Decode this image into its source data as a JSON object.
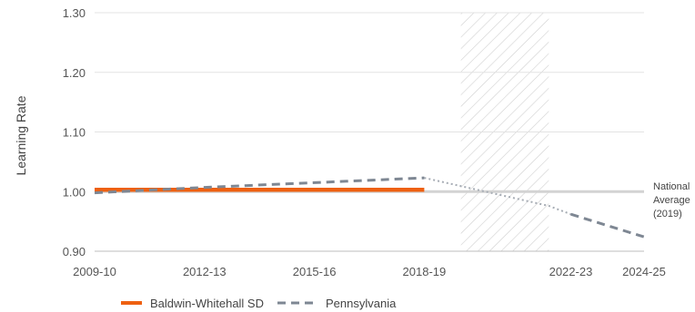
{
  "chart_data": {
    "type": "line",
    "title": "",
    "xlabel": "",
    "ylabel": "Learning Rate",
    "x_ticks": [
      "2009-10",
      "2012-13",
      "2015-16",
      "2018-19",
      "2022-23",
      "2024-25"
    ],
    "x_tick_years": [
      2009,
      2012,
      2015,
      2018,
      2022,
      2024
    ],
    "x_range": [
      2009,
      2024
    ],
    "y_ticks": [
      "0.90",
      "1.00",
      "1.10",
      "1.20",
      "1.30"
    ],
    "y_tick_values": [
      0.9,
      1.0,
      1.1,
      1.2,
      1.3
    ],
    "ylim": [
      0.9,
      1.3
    ],
    "grid": "horizontal",
    "hatched_period": [
      2019,
      2021.4
    ],
    "reference_line": {
      "value": 1.0,
      "label_lines": [
        "National",
        "Average",
        "(2019)"
      ]
    },
    "series": [
      {
        "name": "Baldwin-Whitehall SD",
        "style": "solid",
        "color": "#ee6011",
        "x": [
          2009,
          2018
        ],
        "values": [
          1.003,
          1.003
        ]
      },
      {
        "name": "Pennsylvania",
        "style": "dashed",
        "color": "#7e8793",
        "x": [
          2009,
          2012,
          2015,
          2018
        ],
        "values": [
          0.998,
          1.007,
          1.015,
          1.023
        ]
      },
      {
        "name": "",
        "style": "dotted",
        "color": "#a6acb4",
        "x": [
          2018,
          2021.4,
          2022
        ],
        "values": [
          1.023,
          0.976,
          0.962
        ],
        "legend": false
      },
      {
        "name": "",
        "style": "dashed",
        "color": "#7e8793",
        "x": [
          2022,
          2024
        ],
        "values": [
          0.962,
          0.924
        ],
        "legend": false
      }
    ],
    "legend_position": "bottom-left"
  }
}
